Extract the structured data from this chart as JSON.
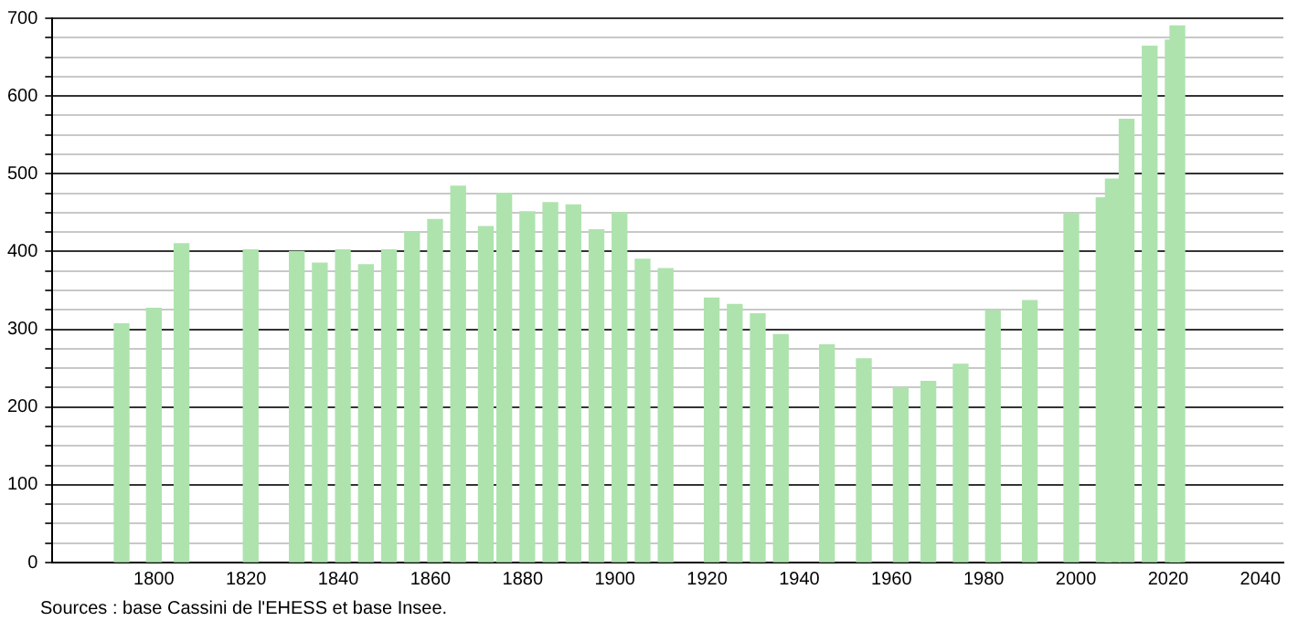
{
  "chart_data": {
    "type": "bar",
    "x": [
      1793,
      1800,
      1806,
      1821,
      1831,
      1836,
      1841,
      1846,
      1851,
      1856,
      1861,
      1866,
      1872,
      1876,
      1881,
      1886,
      1891,
      1896,
      1901,
      1906,
      1911,
      1921,
      1926,
      1931,
      1936,
      1946,
      1954,
      1962,
      1968,
      1975,
      1982,
      1990,
      1999,
      2006,
      2008,
      2011,
      2016,
      2021,
      2022
    ],
    "values": [
      307,
      327,
      410,
      402,
      400,
      385,
      402,
      383,
      402,
      425,
      441,
      484,
      432,
      475,
      451,
      463,
      460,
      428,
      450,
      390,
      378,
      340,
      332,
      320,
      293,
      280,
      262,
      225,
      233,
      255,
      324,
      337,
      449,
      469,
      493,
      570,
      664,
      672,
      690
    ],
    "color": "#aee3ae",
    "xlim": [
      1778,
      2045
    ],
    "xticks": [
      1800,
      1820,
      1840,
      1860,
      1880,
      1900,
      1920,
      1940,
      1960,
      1980,
      2000,
      2020,
      2040
    ],
    "ylim": [
      0,
      700
    ],
    "yticks": [
      0,
      {
        "value": 25,
        "label": null
      },
      {
        "value": 50,
        "label": null
      },
      {
        "value": 75,
        "label": null
      },
      100,
      {
        "value": 125,
        "label": null
      },
      {
        "value": 150,
        "label": null
      },
      {
        "value": 175,
        "label": null
      },
      200,
      {
        "value": 225,
        "label": null
      },
      {
        "value": 250,
        "label": null
      },
      {
        "value": 275,
        "label": null
      },
      300,
      {
        "value": 325,
        "label": null
      },
      {
        "value": 350,
        "label": null
      },
      {
        "value": 375,
        "label": null
      },
      400,
      {
        "value": 425,
        "label": null
      },
      {
        "value": 450,
        "label": null
      },
      {
        "value": 475,
        "label": null
      },
      500,
      {
        "value": 525,
        "label": null
      },
      {
        "value": 550,
        "label": null
      },
      {
        "value": 575,
        "label": null
      },
      600,
      {
        "value": 625,
        "label": null
      },
      {
        "value": 650,
        "label": null
      },
      {
        "value": 675,
        "label": null
      },
      700
    ],
    "grid": "y",
    "legend": false,
    "annotations": [
      "Sources : base Cassini de l'EHESS et base Insee."
    ]
  }
}
